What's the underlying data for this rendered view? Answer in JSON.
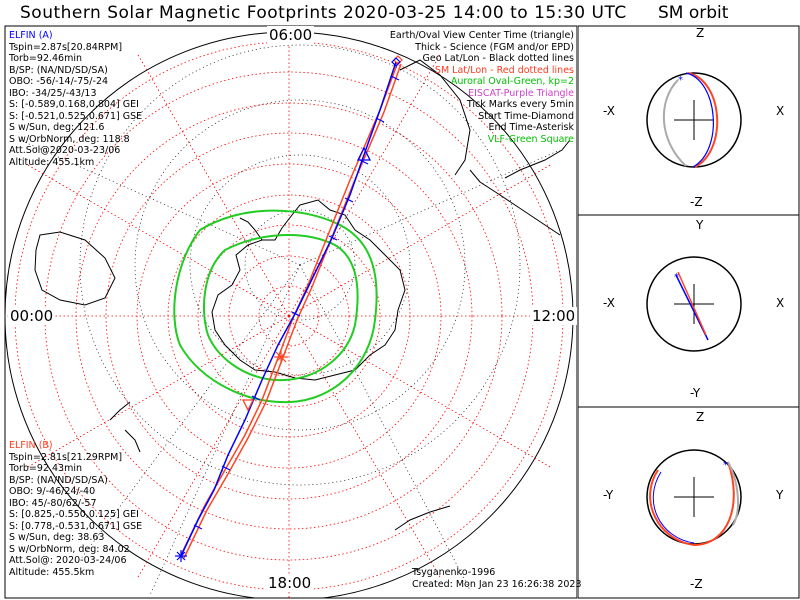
{
  "header": {
    "title": "Southern Solar Magnetic Footprints 2020-03-25 14:00 to 15:30 UTC",
    "sm_title": "SM orbit"
  },
  "map": {
    "clock_top": "06:00",
    "clock_left": "00:00",
    "clock_right": "12:00",
    "clock_bottom": "18:00"
  },
  "legend": {
    "items": [
      {
        "text": "Earth/Oval View Center Time (triangle)",
        "color": "#000000"
      },
      {
        "text": "Thick - Science (FGM and/or EPD)",
        "color": "#000000"
      },
      {
        "text": "Geo Lat/Lon - Black dotted lines",
        "color": "#000000"
      },
      {
        "text": "SM Lat/Lon - Red dotted lines",
        "color": "#ff0000"
      },
      {
        "text": "Auroral Oval-Green, kp=2",
        "color": "#00c000"
      },
      {
        "text": "EISCAT-Purple Triangle",
        "color": "#cc44cc"
      },
      {
        "text": "Tick Marks every 5min",
        "color": "#000000"
      },
      {
        "text": "Start Time-Diamond",
        "color": "#000000"
      },
      {
        "text": "End Time-Asterisk",
        "color": "#000000"
      },
      {
        "text": "VLF-Green Square",
        "color": "#00c000"
      }
    ]
  },
  "elfin_a": {
    "name": "ELFIN (A)",
    "lines": [
      "Tspin=2.87s[20.84RPM]",
      "Torb=92.46min",
      "B/SP: (NA/ND/SD/SA)",
      "OBO: -56/-14/-75/-24",
      "IBO: -34/25/-43/13",
      "S: [-0.589,0.168,0.804] GEI",
      "S: [-0.521,0.525,0.671] GSE",
      "S w/Sun, deg: 121.6",
      "S w/OrbNorm, deg: 118.8",
      "Att.Sol@2020-03-23/06",
      "Altitude: 455.1km"
    ]
  },
  "elfin_b": {
    "name": "ELFIN (B)",
    "lines": [
      "Tspin=2.81s[21.29RPM]",
      "Torb=92.43min",
      "B/SP: (NA/ND/SD/SA)",
      "OBO: 9/-46/24/-40",
      "IBO: 45/-80/62/-57",
      "S: [0.825,-0.550,0.125] GEI",
      "S: [0.778,-0.531,0.671] GSE",
      "S w/Sun, deg: 38.63",
      "S w/OrbNorm, deg: 84.02",
      "Att.Sol@: 2020-03-24/06",
      "Altitude: 455.5km"
    ]
  },
  "credits": {
    "author": "Tsyganenko-1996",
    "created": "Created: Mon Jan 23 16:26:38 2023"
  },
  "sm_orbit": {
    "panel1": {
      "top": "Z",
      "bottom": "-Z",
      "left": "-X",
      "right": "X"
    },
    "panel2": {
      "top": "Y",
      "bottom": "-Y",
      "left": "-X",
      "right": "X"
    },
    "panel3": {
      "top": "Z",
      "bottom": "-Z",
      "left": "-Y",
      "right": "Y"
    }
  },
  "colors": {
    "elfin_a": "#0000ff",
    "elfin_b": "#ff4422",
    "oval": "#00cc00",
    "sm_grid": "#ff0000",
    "geo_grid": "#000000"
  }
}
